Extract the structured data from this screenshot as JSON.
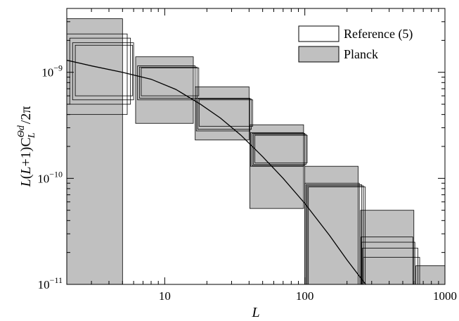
{
  "chart_data": {
    "type": "box",
    "xscale": "log",
    "yscale": "log",
    "xlim": [
      2,
      1000
    ],
    "ylim": [
      1e-11,
      4e-09
    ],
    "xlabel": "L",
    "ylabel": "L(L+1)C_L^{Θd}/2π",
    "xticks": [
      {
        "value": 10,
        "label": "10"
      },
      {
        "value": 100,
        "label": "100"
      },
      {
        "value": 1000,
        "label": "1000"
      }
    ],
    "yticks": [
      {
        "value": 1e-11,
        "base": "10",
        "exp": "−11"
      },
      {
        "value": 1e-10,
        "base": "10",
        "exp": "−10"
      },
      {
        "value": 1e-09,
        "base": "10",
        "exp": "−9"
      }
    ],
    "legend": {
      "position": "top-right",
      "entries": [
        {
          "label": "Reference (5)",
          "fill": "#ffffff"
        },
        {
          "label": "Planck",
          "fill": "#c0c0c0"
        }
      ]
    },
    "colors": {
      "planck_fill": "#c0c0c0",
      "outline": "#000000",
      "reference_fill": "none"
    },
    "series": [
      {
        "name": "Planck",
        "boxes": [
          {
            "x0": 2,
            "x1": 5,
            "y0": 1e-11,
            "y1": 3.2e-09
          },
          {
            "x0": 6.2,
            "x1": 16,
            "y0": 3.3e-10,
            "y1": 1.4e-09
          },
          {
            "x0": 16.5,
            "x1": 40,
            "y0": 2.3e-10,
            "y1": 7.3e-10
          },
          {
            "x0": 40.5,
            "x1": 98,
            "y0": 5.2e-11,
            "y1": 3.2e-10
          },
          {
            "x0": 100,
            "x1": 240,
            "y0": 1e-11,
            "y1": 1.3e-10
          },
          {
            "x0": 250,
            "x1": 600,
            "y0": 1e-11,
            "y1": 5e-11
          },
          {
            "x0": 620,
            "x1": 1000,
            "y0": 1e-11,
            "y1": 1.5e-11
          }
        ]
      },
      {
        "name": "Reference (5)",
        "boxes": [
          {
            "x0": 2,
            "x1": 5.4,
            "y0": 4e-10,
            "y1": 2.3e-09
          },
          {
            "x0": 2.1,
            "x1": 5.7,
            "y0": 5e-10,
            "y1": 2.1e-09
          },
          {
            "x0": 2.2,
            "x1": 6.0,
            "y0": 5.5e-10,
            "y1": 1.9e-09
          },
          {
            "x0": 2.3,
            "x1": 5.9,
            "y0": 6e-10,
            "y1": 1.8e-09
          },
          {
            "x0": 6.4,
            "x1": 16.5,
            "y0": 5.5e-10,
            "y1": 1.15e-09
          },
          {
            "x0": 6.6,
            "x1": 17.0,
            "y0": 5.7e-10,
            "y1": 1.12e-09
          },
          {
            "x0": 6.8,
            "x1": 17.5,
            "y0": 6e-10,
            "y1": 1.1e-09
          },
          {
            "x0": 16.8,
            "x1": 40.5,
            "y0": 2.8e-10,
            "y1": 5.7e-10
          },
          {
            "x0": 17.2,
            "x1": 41.5,
            "y0": 2.9e-10,
            "y1": 5.6e-10
          },
          {
            "x0": 17.6,
            "x1": 42.5,
            "y0": 3.1e-10,
            "y1": 5.5e-10
          },
          {
            "x0": 41,
            "x1": 98,
            "y0": 1.3e-10,
            "y1": 2.7e-10
          },
          {
            "x0": 42,
            "x1": 100,
            "y0": 1.32e-10,
            "y1": 2.65e-10
          },
          {
            "x0": 43,
            "x1": 102,
            "y0": 1.35e-10,
            "y1": 2.6e-10
          },
          {
            "x0": 44,
            "x1": 104,
            "y0": 1.4e-10,
            "y1": 2.55e-10
          },
          {
            "x0": 100,
            "x1": 245,
            "y0": 1e-11,
            "y1": 9e-11
          },
          {
            "x0": 102,
            "x1": 255,
            "y0": 1e-11,
            "y1": 8.7e-11
          },
          {
            "x0": 104,
            "x1": 262,
            "y0": 1e-11,
            "y1": 8.5e-11
          },
          {
            "x0": 106,
            "x1": 270,
            "y0": 1e-11,
            "y1": 8.3e-11
          },
          {
            "x0": 252,
            "x1": 590,
            "y0": 1e-11,
            "y1": 2.8e-11
          },
          {
            "x0": 255,
            "x1": 610,
            "y0": 1e-11,
            "y1": 2.5e-11
          },
          {
            "x0": 258,
            "x1": 640,
            "y0": 1e-11,
            "y1": 2.2e-11
          },
          {
            "x0": 262,
            "x1": 660,
            "y0": 1e-11,
            "y1": 1.8e-11
          }
        ]
      },
      {
        "name": "theory",
        "type": "line",
        "x": [
          2,
          3,
          5,
          8,
          12,
          18,
          25,
          35,
          50,
          70,
          100,
          150,
          200,
          260,
          300
        ],
        "y": [
          1.3e-09,
          1.15e-09,
          1e-09,
          8.6e-10,
          6.9e-10,
          5e-10,
          3.7e-10,
          2.55e-10,
          1.6e-10,
          1e-10,
          5.8e-11,
          2.9e-11,
          1.7e-11,
          1.08e-11,
          8.5e-12
        ]
      }
    ]
  }
}
